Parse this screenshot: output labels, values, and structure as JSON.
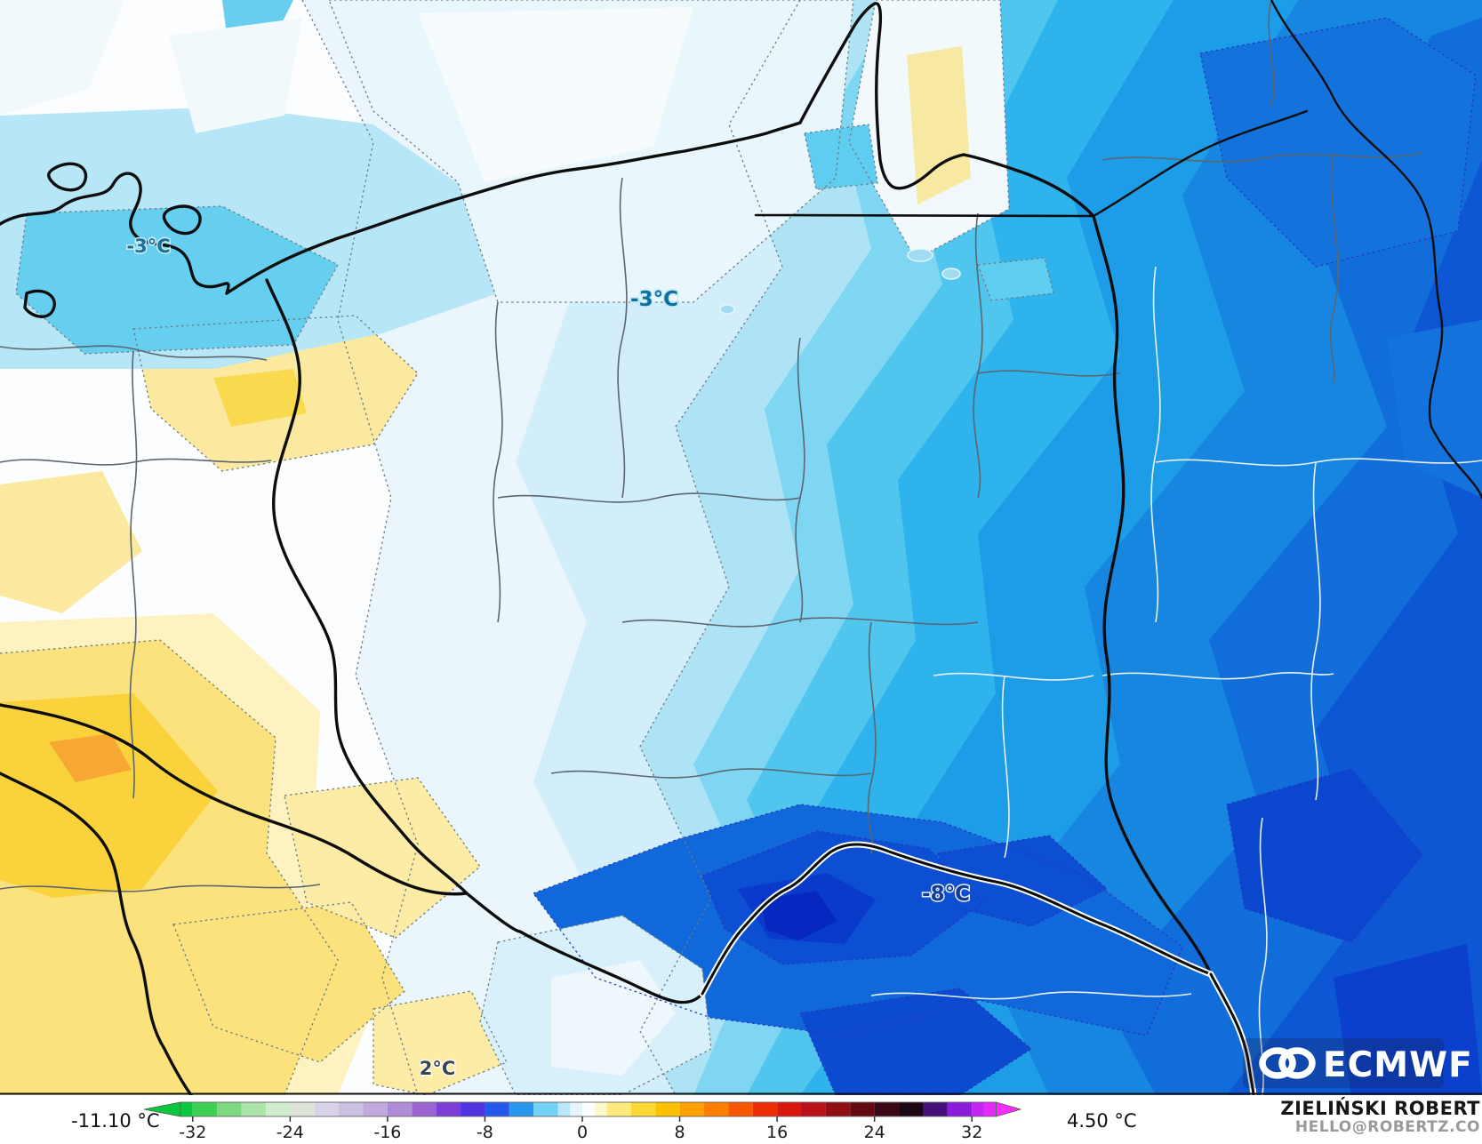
{
  "map": {
    "temperature_labels": [
      {
        "id": "baltic",
        "text": "-3°C"
      },
      {
        "id": "north",
        "text": "-3°C"
      },
      {
        "id": "south",
        "text": "-8°C"
      },
      {
        "id": "southwest",
        "text": "2°C"
      }
    ],
    "logo": {
      "text": "ECMWF"
    }
  },
  "colorbar": {
    "min_label": "-11.10 °C",
    "max_label": "4.50 °C",
    "unit": "°C",
    "domain": [
      -36,
      36
    ],
    "ticks": [
      {
        "value": -32,
        "label": "-32"
      },
      {
        "value": -24,
        "label": "-24"
      },
      {
        "value": -16,
        "label": "-16"
      },
      {
        "value": -8,
        "label": "-8"
      },
      {
        "value": 0,
        "label": "0"
      },
      {
        "value": 8,
        "label": "8"
      },
      {
        "value": 16,
        "label": "16"
      },
      {
        "value": 24,
        "label": "24"
      },
      {
        "value": 32,
        "label": "32"
      }
    ],
    "arrow_left_color": "#0ac73e",
    "arrow_right_color": "#f72cfe",
    "segments": [
      {
        "from": -33,
        "to": -32,
        "color": "#0ac73e"
      },
      {
        "from": -32,
        "to": -30,
        "color": "#3ecf55"
      },
      {
        "from": -30,
        "to": -28,
        "color": "#7cd981"
      },
      {
        "from": -28,
        "to": -26,
        "color": "#abe3a9"
      },
      {
        "from": -26,
        "to": -24,
        "color": "#cfeccb"
      },
      {
        "from": -24,
        "to": -22,
        "color": "#dee3da"
      },
      {
        "from": -22,
        "to": -20,
        "color": "#d7d2e4"
      },
      {
        "from": -20,
        "to": -18,
        "color": "#ccc0e1"
      },
      {
        "from": -18,
        "to": -16,
        "color": "#bfaade"
      },
      {
        "from": -16,
        "to": -14,
        "color": "#ad8dd8"
      },
      {
        "from": -14,
        "to": -12,
        "color": "#9a64d3"
      },
      {
        "from": -12,
        "to": -10,
        "color": "#7b3fd8"
      },
      {
        "from": -10,
        "to": -8,
        "color": "#4f35e2"
      },
      {
        "from": -8,
        "to": -6,
        "color": "#2458ec"
      },
      {
        "from": -6,
        "to": -4,
        "color": "#2896ef"
      },
      {
        "from": -4,
        "to": -2,
        "color": "#72d2f3"
      },
      {
        "from": -2,
        "to": -1,
        "color": "#b8e8f8"
      },
      {
        "from": -1,
        "to": 0,
        "color": "#e6f4fb"
      },
      {
        "from": 0,
        "to": 1,
        "color": "#ffffff"
      },
      {
        "from": 1,
        "to": 2,
        "color": "#fdf6cf"
      },
      {
        "from": 2,
        "to": 4,
        "color": "#fdea7e"
      },
      {
        "from": 4,
        "to": 6,
        "color": "#fdd935"
      },
      {
        "from": 6,
        "to": 8,
        "color": "#fcc201"
      },
      {
        "from": 8,
        "to": 10,
        "color": "#fca101"
      },
      {
        "from": 10,
        "to": 12,
        "color": "#fb7d01"
      },
      {
        "from": 12,
        "to": 14,
        "color": "#f95601"
      },
      {
        "from": 14,
        "to": 16,
        "color": "#ef2d04"
      },
      {
        "from": 16,
        "to": 18,
        "color": "#d8170f"
      },
      {
        "from": 18,
        "to": 20,
        "color": "#b81117"
      },
      {
        "from": 20,
        "to": 22,
        "color": "#8f0d14"
      },
      {
        "from": 22,
        "to": 24,
        "color": "#64090f"
      },
      {
        "from": 24,
        "to": 26,
        "color": "#3a0a14"
      },
      {
        "from": 26,
        "to": 28,
        "color": "#190714"
      },
      {
        "from": 28,
        "to": 30,
        "color": "#45127c"
      },
      {
        "from": 30,
        "to": 32,
        "color": "#8c1cdc"
      },
      {
        "from": 32,
        "to": 33,
        "color": "#c524f4"
      },
      {
        "from": 33,
        "to": 34,
        "color": "#e32afb"
      }
    ]
  },
  "attribution": {
    "name": "ZIELIŃSKI ROBERT",
    "email": "HELLO@ROBERTZ.CO"
  }
}
